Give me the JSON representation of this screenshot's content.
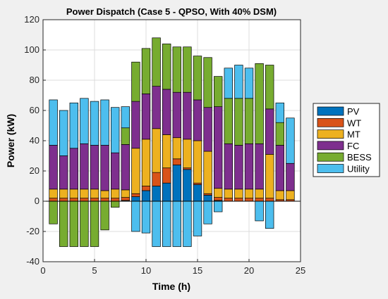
{
  "chart_data": {
    "type": "bar",
    "stacked": true,
    "title": "Power Dispatch (Case 5 - QPSO, With 40% DSM)",
    "xlabel": "Time (h)",
    "ylabel": "Power (kW)",
    "xlim": [
      0,
      25
    ],
    "ylim": [
      -40,
      120
    ],
    "xticks": [
      0,
      5,
      10,
      15,
      20,
      25
    ],
    "yticks": [
      -40,
      -20,
      0,
      20,
      40,
      60,
      80,
      100,
      120
    ],
    "grid": true,
    "legend_position": "outside-right",
    "x": [
      1,
      2,
      3,
      4,
      5,
      6,
      7,
      8,
      9,
      10,
      11,
      12,
      13,
      14,
      15,
      16,
      17,
      18,
      19,
      20,
      21,
      22,
      23,
      24
    ],
    "series": [
      {
        "name": "PV",
        "color": "#0072BD",
        "values": [
          0,
          0,
          0,
          0,
          0,
          0,
          0,
          0.5,
          3,
          7,
          10,
          12,
          24,
          21,
          11,
          4,
          0.5,
          0,
          0,
          0,
          0,
          0,
          0,
          0
        ]
      },
      {
        "name": "WT",
        "color": "#D95319",
        "values": [
          2,
          2,
          2,
          2,
          2,
          2,
          2,
          2,
          2,
          3,
          9,
          10,
          4,
          1,
          1,
          1,
          2,
          2,
          2,
          2,
          2,
          2,
          1,
          1
        ]
      },
      {
        "name": "MT",
        "color": "#EDB120",
        "values": [
          6,
          6,
          6,
          6,
          6,
          5,
          6,
          5,
          30,
          31,
          29,
          22,
          14,
          19,
          28,
          28,
          6,
          6,
          6,
          6,
          6,
          29,
          6,
          6
        ]
      },
      {
        "name": "FC",
        "color": "#7E2F8E",
        "values": [
          29,
          22,
          27,
          30,
          29,
          30,
          24,
          30,
          31,
          30,
          28,
          30,
          30,
          31,
          27,
          29,
          54,
          30,
          29,
          30,
          30,
          30,
          30,
          18
        ]
      },
      {
        "name": "BESS",
        "color": "#77AC30",
        "values": [
          -15,
          -30,
          -30,
          -30,
          -30,
          -19,
          -4,
          11,
          26,
          30,
          32,
          30,
          30,
          30,
          29,
          33,
          20,
          30,
          31,
          30,
          53,
          29,
          15,
          0
        ]
      },
      {
        "name": "Utility",
        "color": "#4DBEEE",
        "values": [
          30,
          30,
          30,
          30,
          29,
          30,
          30,
          14,
          -20,
          -21,
          -30,
          -30,
          -30,
          -30,
          -23,
          -15,
          -7,
          20,
          22,
          20,
          -13,
          -18,
          13,
          30
        ]
      }
    ]
  }
}
